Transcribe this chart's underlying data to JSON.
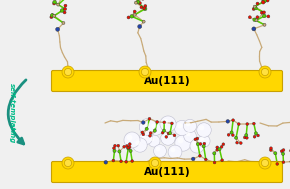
{
  "bg_color": "#f0f0f0",
  "au_color": "#FFD700",
  "au_edge_color": "#C8A000",
  "au_text": "Au(111)",
  "au_text_color": "#000000",
  "au_text_fontsize": 7.5,
  "arrow_color": "#1A9080",
  "arrow_label": "self-templating",
  "arrow_label_color": "#00BB88",
  "arrow_label_fontsize": 5.0,
  "sphere_color": "#f0f0ff",
  "sphere_edge_color": "#aaaacc",
  "gold_ball_color": "#FFD700",
  "gold_ball_edge": "#C8A000",
  "peptide_tan": "#C8AA78",
  "peptide_green": "#55CC00",
  "peptide_red": "#EE1100",
  "peptide_blue": "#2244AA",
  "peptide_dark": "#222222"
}
